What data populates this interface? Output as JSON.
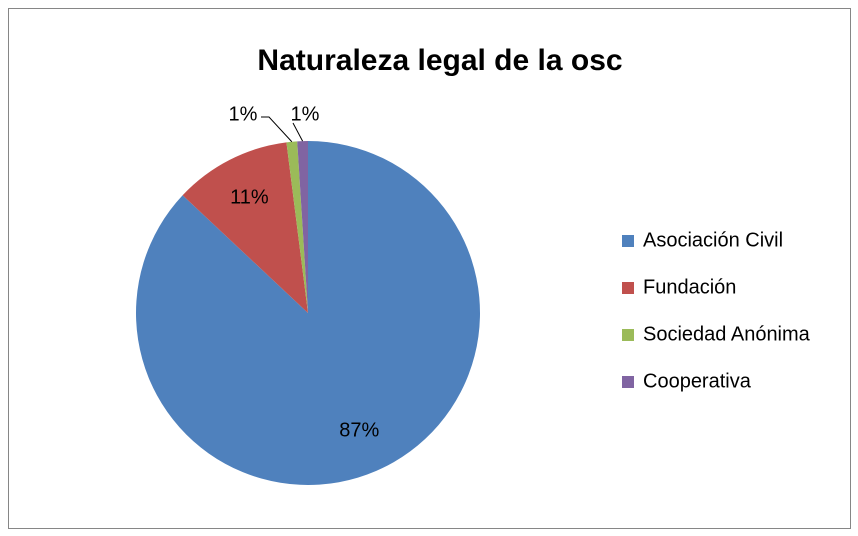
{
  "chart_data": {
    "type": "pie",
    "title": "Naturaleza legal de la osc",
    "categories": [
      "Asociación Civil",
      "Fundación",
      "Sociedad Anónima",
      "Cooperativa"
    ],
    "values": [
      87,
      11,
      1,
      1
    ],
    "value_labels": [
      "87%",
      "11%",
      "1%",
      "1%"
    ],
    "colors": [
      "#4f81bd",
      "#c0504d",
      "#9bbb59",
      "#8064a2"
    ],
    "legend": "right"
  }
}
